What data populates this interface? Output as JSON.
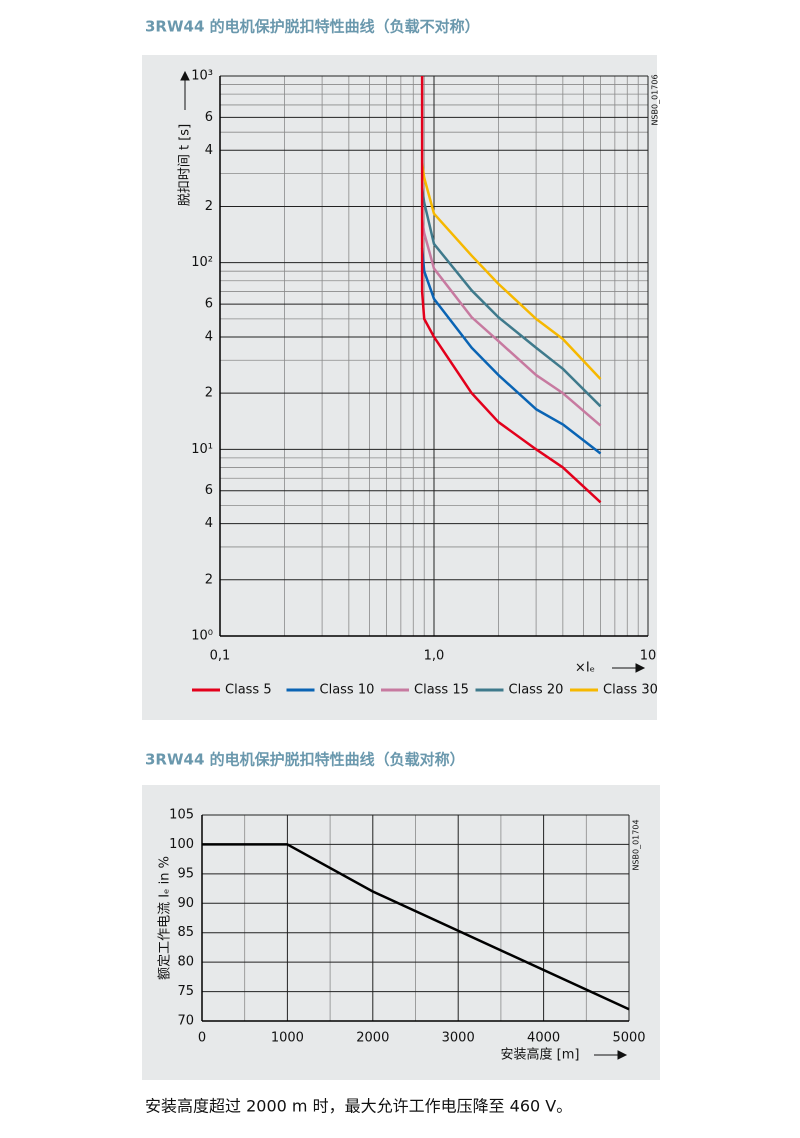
{
  "chart_data": [
    {
      "type": "line",
      "title": "3RW44 的电机保护脱扣特性曲线（负载不对称）",
      "xlabel": "×Iₑ",
      "ylabel": "脱扣时间 t [s]",
      "code": "NSB0_01706",
      "xlog": true,
      "ylog": true,
      "grid": true,
      "legend": "bottom",
      "xlim": [
        0.1,
        10
      ],
      "ylim": [
        1,
        1000
      ],
      "xticks": [
        {
          "value": 0.1,
          "label": "0,1"
        },
        {
          "value": 1,
          "label": "1,0"
        },
        10
      ],
      "minor_xticks": [
        0.2,
        0.3,
        0.4,
        0.5,
        0.6,
        0.7,
        0.8,
        0.9,
        2,
        3,
        4,
        5,
        6,
        7,
        8,
        9
      ],
      "yticks": [
        {
          "value": 1,
          "label": "10⁰"
        },
        2,
        4,
        6,
        {
          "value": 10,
          "label": "10¹"
        },
        {
          "value": 20,
          "label": "2"
        },
        {
          "value": 40,
          "label": "4"
        },
        {
          "value": 60,
          "label": "6"
        },
        {
          "value": 100,
          "label": "10²"
        },
        {
          "value": 200,
          "label": "2"
        },
        {
          "value": 400,
          "label": "4"
        },
        {
          "value": 600,
          "label": "6"
        },
        {
          "value": 1000,
          "label": "10³"
        }
      ],
      "minor_yticks": [
        3,
        5,
        7,
        8,
        9,
        30,
        50,
        70,
        80,
        90,
        300,
        500,
        700,
        800,
        900
      ],
      "series": [
        {
          "name": "Class 5",
          "color": "#e3001b",
          "x": [
            0.88,
            0.88,
            0.9,
            1,
            1.5,
            2,
            3,
            4,
            6
          ],
          "values": [
            1000,
            70,
            50,
            40,
            20,
            14,
            10,
            8,
            5.2
          ]
        },
        {
          "name": "Class 10",
          "color": "#0a64b4",
          "x": [
            0.88,
            0.9,
            1,
            1.5,
            2,
            3,
            4,
            6
          ],
          "values": [
            120,
            90,
            64,
            35,
            25,
            16.4,
            13.6,
            9.5
          ]
        },
        {
          "name": "Class 15",
          "color": "#c77aa0",
          "x": [
            0.88,
            0.9,
            1,
            1.5,
            2,
            3,
            4,
            6
          ],
          "values": [
            170,
            144,
            93,
            51,
            38,
            25,
            20,
            13.4
          ]
        },
        {
          "name": "Class 20",
          "color": "#3f7a8c",
          "x": [
            0.88,
            0.9,
            1,
            1.5,
            2,
            3,
            4,
            6
          ],
          "values": [
            250,
            210,
            126,
            71,
            51,
            35,
            27,
            17
          ]
        },
        {
          "name": "Class 30",
          "color": "#f6b800",
          "x": [
            0.88,
            0.9,
            1,
            1.5,
            2,
            3,
            4,
            6
          ],
          "values": [
            340,
            285,
            183,
            109,
            77,
            50,
            39,
            23.8
          ]
        }
      ]
    },
    {
      "type": "line",
      "title": "3RW44 的电机保护脱扣特性曲线（负载对称）",
      "xlabel": "安装高度 [m]",
      "ylabel": "额定工作电流 Iₑ in %",
      "code": "NSB0_01704",
      "grid": true,
      "xlim": [
        0,
        5000
      ],
      "ylim": [
        70,
        105
      ],
      "xticks": [
        0,
        1000,
        2000,
        3000,
        4000,
        5000
      ],
      "minor_xticks": [
        500,
        1500,
        2500,
        3500,
        4500
      ],
      "yticks": [
        70,
        75,
        80,
        85,
        90,
        95,
        100,
        105
      ],
      "series": [
        {
          "color": "#000000",
          "x": [
            0,
            1000,
            2000,
            5000
          ],
          "values": [
            100,
            100,
            92,
            72
          ]
        }
      ]
    }
  ],
  "caption": "安装高度超过 2000 m 时，最大允许工作电压降至 460 V。"
}
